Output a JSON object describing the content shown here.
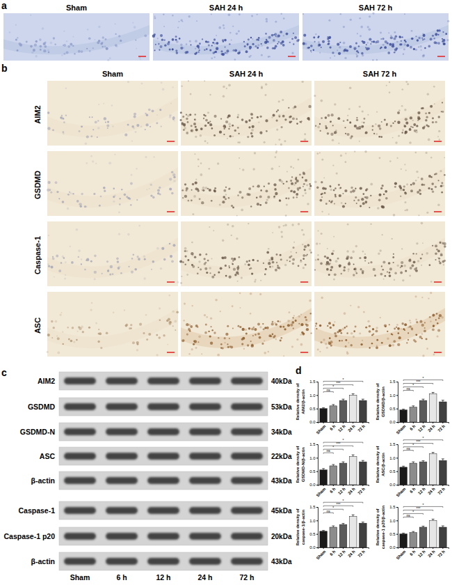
{
  "figure": {
    "panel_a": {
      "label": "a",
      "columns": [
        "Sham",
        "SAH 24 h",
        "SAH 72 h"
      ]
    },
    "panel_b": {
      "label": "b",
      "columns": [
        "Sham",
        "SAH 24 h",
        "SAH 72 h"
      ],
      "rows": [
        "AIM2",
        "GSDMD",
        "Caspase-1",
        "ASC"
      ]
    },
    "panel_c": {
      "label": "c",
      "lanes": [
        "Sham",
        "6 h",
        "12 h",
        "24 h",
        "72 h"
      ],
      "blots": [
        {
          "protein": "AIM2",
          "size": "40kDa"
        },
        {
          "protein": "GSDMD",
          "size": "53kDa"
        },
        {
          "protein": "GSDMD-N",
          "size": "34kDa"
        },
        {
          "protein": "ASC",
          "size": "22kDa"
        },
        {
          "protein": "β-actin",
          "size": "43kDa"
        },
        {
          "protein": "Caspase-1",
          "size": "45kDa"
        },
        {
          "protein": "Caspase-1 p20",
          "size": "20kDa"
        },
        {
          "protein": "β-actin",
          "size": "43kDa"
        }
      ]
    },
    "panel_d": {
      "label": "d"
    }
  },
  "chart_data": [
    {
      "type": "bar",
      "y_label": [
        "Relative density of",
        "AIM2/β-actin"
      ],
      "categories": [
        "Sham",
        "6 h",
        "12 h",
        "24 h",
        "72 h"
      ],
      "values": [
        0.5,
        0.6,
        0.8,
        1.0,
        0.8
      ],
      "errors": [
        0.03,
        0.05,
        0.05,
        0.05,
        0.05
      ],
      "colors": [
        "#1a1a1a",
        "#8c8c8c",
        "#5a5a5a",
        "#e6e6e6",
        "#404040"
      ],
      "ylim": [
        0,
        1.5
      ],
      "yticks": [
        {
          "value": 0,
          "label": "0.0"
        },
        0.5,
        {
          "value": 1,
          "label": "1.0"
        },
        1.5
      ],
      "significance": [
        {
          "from": 0,
          "to": 1,
          "label": "ns"
        },
        {
          "from": 0,
          "to": 2,
          "label": "*"
        },
        {
          "from": 0,
          "to": 3,
          "label": "***"
        },
        {
          "from": 0,
          "to": 4,
          "label": "*"
        }
      ]
    },
    {
      "type": "bar",
      "y_label": [
        "Relative density of",
        "GSDMD/β-actin"
      ],
      "categories": [
        "Sham",
        "6 h",
        "12 h",
        "24 h",
        "72 h"
      ],
      "values": [
        0.45,
        0.55,
        0.8,
        1.05,
        0.75
      ],
      "errors": [
        0.03,
        0.05,
        0.05,
        0.05,
        0.06
      ],
      "colors": [
        "#1a1a1a",
        "#8c8c8c",
        "#5a5a5a",
        "#e6e6e6",
        "#404040"
      ],
      "ylim": [
        0,
        1.5
      ],
      "yticks": [
        {
          "value": 0,
          "label": "0.0"
        },
        0.5,
        {
          "value": 1,
          "label": "1.0"
        },
        1.5
      ],
      "significance": [
        {
          "from": 0,
          "to": 1,
          "label": "ns"
        },
        {
          "from": 0,
          "to": 2,
          "label": "*"
        },
        {
          "from": 0,
          "to": 3,
          "label": "***"
        },
        {
          "from": 0,
          "to": 4,
          "label": "*"
        }
      ]
    },
    {
      "type": "bar",
      "y_label": [
        "Relative density of",
        "GSDMD-N/β-actin"
      ],
      "categories": [
        "Sham",
        "6 h",
        "12 h",
        "24 h",
        "72 h"
      ],
      "values": [
        0.55,
        0.7,
        0.8,
        1.05,
        0.85
      ],
      "errors": [
        0.05,
        0.05,
        0.05,
        0.06,
        0.05
      ],
      "colors": [
        "#1a1a1a",
        "#8c8c8c",
        "#5a5a5a",
        "#e6e6e6",
        "#404040"
      ],
      "ylim": [
        0,
        1.5
      ],
      "yticks": [
        {
          "value": 0,
          "label": "0.0"
        },
        0.5,
        {
          "value": 1,
          "label": "1.0"
        },
        1.5
      ],
      "significance": [
        {
          "from": 0,
          "to": 1,
          "label": "ns"
        },
        {
          "from": 0,
          "to": 2,
          "label": "*"
        },
        {
          "from": 0,
          "to": 3,
          "label": "***"
        },
        {
          "from": 0,
          "to": 4,
          "label": "*"
        }
      ]
    },
    {
      "type": "bar",
      "y_label": [
        "Relative density of",
        "ASC/β-actin"
      ],
      "categories": [
        "Sham",
        "6 h",
        "12 h",
        "24 h",
        "72 h"
      ],
      "values": [
        0.65,
        0.8,
        0.85,
        1.15,
        0.9
      ],
      "errors": [
        0.04,
        0.05,
        0.04,
        0.05,
        0.06
      ],
      "colors": [
        "#1a1a1a",
        "#8c8c8c",
        "#5a5a5a",
        "#e6e6e6",
        "#404040"
      ],
      "ylim": [
        0,
        1.5
      ],
      "yticks": [
        {
          "value": 0,
          "label": "0.0"
        },
        0.5,
        {
          "value": 1,
          "label": "1.0"
        },
        1.5
      ],
      "significance": [
        {
          "from": 0,
          "to": 1,
          "label": "ns"
        },
        {
          "from": 0,
          "to": 2,
          "label": "*"
        },
        {
          "from": 0,
          "to": 3,
          "label": "***"
        },
        {
          "from": 0,
          "to": 4,
          "label": "*"
        }
      ]
    },
    {
      "type": "bar",
      "y_label": [
        "Relative density of",
        "caspase-1/β-actin"
      ],
      "categories": [
        "Sham",
        "6 h",
        "12 h",
        "24 h",
        "72 h"
      ],
      "values": [
        0.6,
        0.75,
        0.85,
        1.15,
        0.9
      ],
      "errors": [
        0.03,
        0.05,
        0.04,
        0.06,
        0.04
      ],
      "colors": [
        "#1a1a1a",
        "#8c8c8c",
        "#5a5a5a",
        "#e6e6e6",
        "#404040"
      ],
      "ylim": [
        0,
        1.5
      ],
      "yticks": [
        {
          "value": 0,
          "label": "0.0"
        },
        0.5,
        {
          "value": 1,
          "label": "1.0"
        },
        1.5
      ],
      "significance": [
        {
          "from": 0,
          "to": 1,
          "label": "ns"
        },
        {
          "from": 0,
          "to": 2,
          "label": "*"
        },
        {
          "from": 0,
          "to": 3,
          "label": "***"
        },
        {
          "from": 0,
          "to": 4,
          "label": "*"
        }
      ]
    },
    {
      "type": "bar",
      "y_label": [
        "Relative density of",
        "caspase-1 p20/β-actin"
      ],
      "categories": [
        "Sham",
        "6 h",
        "12 h",
        "24 h",
        "72 h"
      ],
      "values": [
        0.5,
        0.55,
        0.75,
        1.0,
        0.75
      ],
      "errors": [
        0.03,
        0.04,
        0.04,
        0.05,
        0.05
      ],
      "colors": [
        "#1a1a1a",
        "#8c8c8c",
        "#5a5a5a",
        "#e6e6e6",
        "#404040"
      ],
      "ylim": [
        0,
        1.5
      ],
      "yticks": [
        {
          "value": 0,
          "label": "0.0"
        },
        0.5,
        {
          "value": 1,
          "label": "1.0"
        },
        1.5
      ],
      "significance": [
        {
          "from": 0,
          "to": 1,
          "label": "ns"
        },
        {
          "from": 0,
          "to": 2,
          "label": "*"
        },
        {
          "from": 0,
          "to": 3,
          "label": "***"
        },
        {
          "from": 0,
          "to": 4,
          "label": "*"
        }
      ]
    }
  ]
}
